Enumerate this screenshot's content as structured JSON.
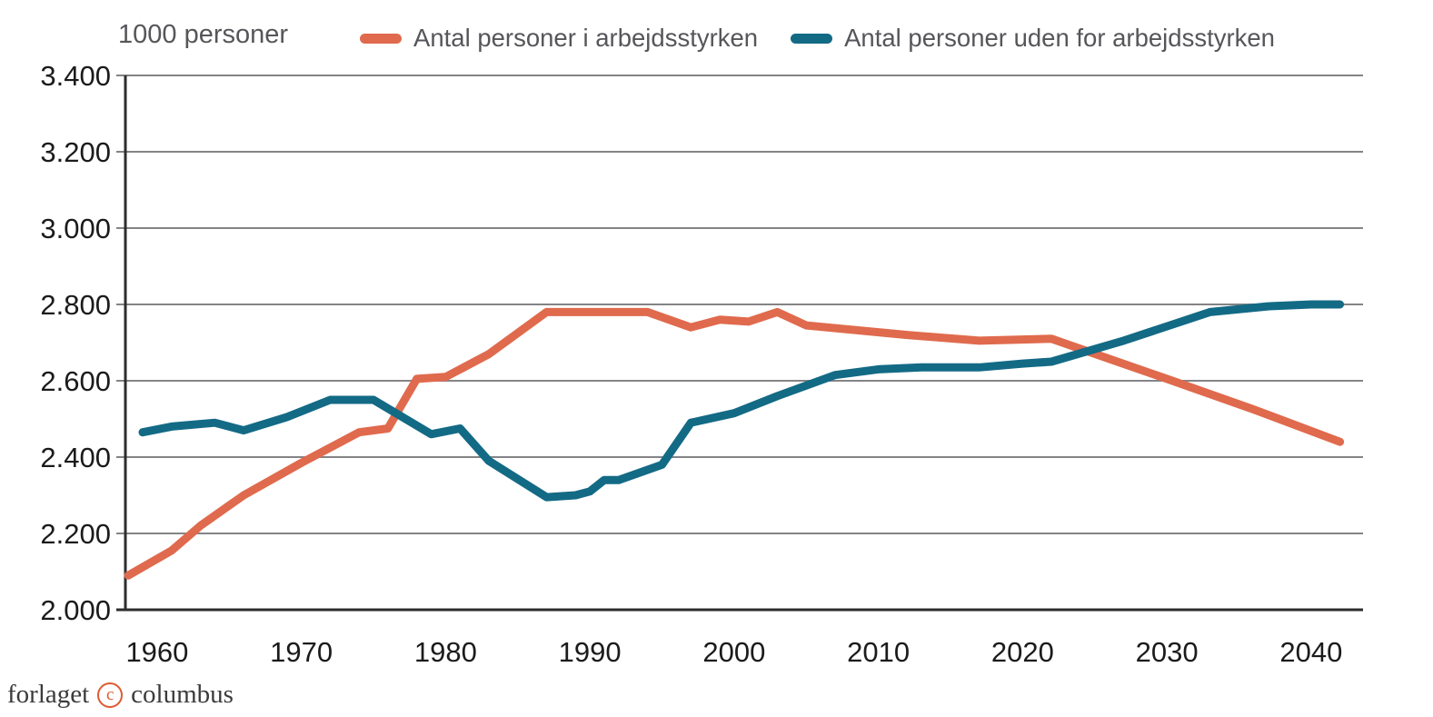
{
  "header": {
    "axis_title": "1000 personer"
  },
  "legend": [
    {
      "label": "Antal personer i arbejdsstyrken",
      "color": "#e06a4d"
    },
    {
      "label": "Antal personer uden for arbejdsstyrken",
      "color": "#136a85"
    }
  ],
  "footer": {
    "brand_left": "forlaget",
    "copyright_symbol": "c",
    "brand_right": "columbus"
  },
  "chart_data": {
    "type": "line",
    "title": "1000 personer",
    "xlabel": "",
    "ylabel": "1000 personer",
    "xlim": [
      1957.8,
      2043.6
    ],
    "ylim": [
      2000,
      3400
    ],
    "x_ticks": [
      1960,
      1970,
      1980,
      1990,
      2000,
      2010,
      2020,
      2030,
      2040
    ],
    "y_ticks": [
      2000,
      2200,
      2400,
      2600,
      2800,
      3000,
      3200,
      3400
    ],
    "y_tick_labels": [
      "2.000",
      "2.200",
      "2.400",
      "2.600",
      "2.800",
      "3.000",
      "3.200",
      "3.400"
    ],
    "grid": "horizontal",
    "legend_position": "top",
    "colors": {
      "gridline": "#848487",
      "axis": "#2d2d2f",
      "tick_text": "#1b1b1d"
    },
    "series": [
      {
        "name": "Antal personer i arbejdsstyrken",
        "color": "#e06a4d",
        "points": [
          [
            1958,
            2090
          ],
          [
            1961,
            2155
          ],
          [
            1963,
            2220
          ],
          [
            1966,
            2300
          ],
          [
            1970,
            2385
          ],
          [
            1974,
            2465
          ],
          [
            1976,
            2475
          ],
          [
            1978,
            2605
          ],
          [
            1980,
            2610
          ],
          [
            1983,
            2670
          ],
          [
            1987,
            2780
          ],
          [
            1994,
            2780
          ],
          [
            1997,
            2740
          ],
          [
            1999,
            2760
          ],
          [
            2001,
            2755
          ],
          [
            2003,
            2780
          ],
          [
            2005,
            2745
          ],
          [
            2012,
            2720
          ],
          [
            2017,
            2705
          ],
          [
            2022,
            2710
          ],
          [
            2030,
            2605
          ],
          [
            2036,
            2525
          ],
          [
            2042,
            2440
          ]
        ]
      },
      {
        "name": "Antal personer uden for arbejdsstyrken",
        "color": "#136a85",
        "points": [
          [
            1959,
            2465
          ],
          [
            1961,
            2480
          ],
          [
            1964,
            2490
          ],
          [
            1966,
            2470
          ],
          [
            1969,
            2505
          ],
          [
            1972,
            2550
          ],
          [
            1975,
            2550
          ],
          [
            1979,
            2460
          ],
          [
            1981,
            2475
          ],
          [
            1983,
            2390
          ],
          [
            1987,
            2295
          ],
          [
            1989,
            2300
          ],
          [
            1990,
            2310
          ],
          [
            1991,
            2340
          ],
          [
            1992,
            2340
          ],
          [
            1995,
            2380
          ],
          [
            1997,
            2490
          ],
          [
            2000,
            2515
          ],
          [
            2003,
            2560
          ],
          [
            2007,
            2615
          ],
          [
            2010,
            2630
          ],
          [
            2013,
            2635
          ],
          [
            2017,
            2635
          ],
          [
            2020,
            2645
          ],
          [
            2022,
            2650
          ],
          [
            2027,
            2705
          ],
          [
            2033,
            2780
          ],
          [
            2037,
            2795
          ],
          [
            2040,
            2800
          ],
          [
            2042,
            2800
          ]
        ]
      }
    ]
  }
}
